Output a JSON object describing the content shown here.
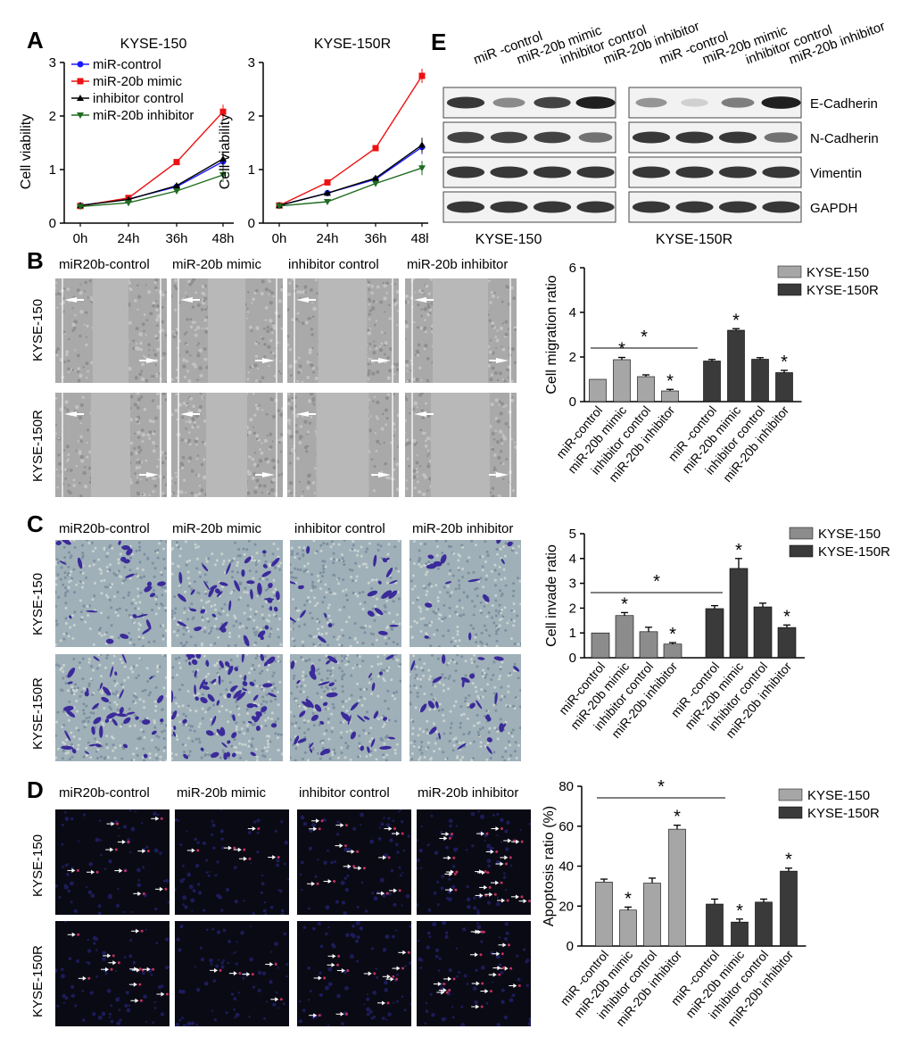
{
  "panels": {
    "A": "A",
    "B": "B",
    "C": "C",
    "D": "D",
    "E": "E"
  },
  "viability": {
    "ylabel": "Cell viability",
    "x": [
      "0h",
      "24h",
      "36h",
      "48h"
    ],
    "yticks": [
      "0",
      "1",
      "2",
      "3"
    ],
    "legend": [
      {
        "name": "miR-control",
        "color": "#1a1aff",
        "marker": "circle"
      },
      {
        "name": "miR-20b mimic",
        "color": "#ee1111",
        "marker": "square"
      },
      {
        "name": "inhibitor control",
        "color": "#000000",
        "marker": "triangle"
      },
      {
        "name": "miR-20b inhibitor",
        "color": "#1f6b1f",
        "marker": "triangle-down"
      }
    ]
  },
  "chart_data": [
    {
      "type": "line",
      "title": "KYSE-150",
      "x": [
        "0h",
        "24h",
        "36h",
        "48h"
      ],
      "ylabel": "Cell viability",
      "ylim": [
        0,
        3
      ],
      "series": [
        {
          "name": "miR-control",
          "values": [
            0.33,
            0.45,
            0.68,
            1.15
          ]
        },
        {
          "name": "miR-20b mimic",
          "values": [
            0.32,
            0.47,
            1.14,
            2.08
          ]
        },
        {
          "name": "inhibitor control",
          "values": [
            0.33,
            0.44,
            0.7,
            1.2
          ]
        },
        {
          "name": "miR-20b inhibitor",
          "values": [
            0.31,
            0.38,
            0.6,
            0.9
          ]
        }
      ]
    },
    {
      "type": "line",
      "title": "KYSE-150R",
      "x": [
        "0h",
        "24h",
        "36h",
        "48h"
      ],
      "ylabel": "Cell viability",
      "ylim": [
        0,
        3
      ],
      "series": [
        {
          "name": "miR-control",
          "values": [
            0.33,
            0.56,
            0.82,
            1.42
          ]
        },
        {
          "name": "miR-20b mimic",
          "values": [
            0.33,
            0.76,
            1.4,
            2.75
          ]
        },
        {
          "name": "inhibitor control",
          "values": [
            0.33,
            0.56,
            0.84,
            1.46
          ]
        },
        {
          "name": "miR-20b inhibitor",
          "values": [
            0.32,
            0.4,
            0.74,
            1.03
          ]
        }
      ]
    },
    {
      "type": "bar",
      "ylabel": "Cell migration ratio",
      "ylim": [
        0,
        6
      ],
      "yticks": [
        0,
        2,
        4,
        6
      ],
      "categories": [
        "miR-control",
        "miR-20b mimic",
        "inhibitor control",
        "miR-20b inhibitor",
        "miR -control",
        "miR-20b mimic",
        "inhibitor control",
        "miR-20b inhibitor"
      ],
      "values": [
        1.0,
        1.88,
        1.12,
        0.48,
        1.82,
        3.2,
        1.9,
        1.3
      ],
      "errors": [
        0,
        0.1,
        0.08,
        0.07,
        0.07,
        0.07,
        0.07,
        0.1
      ],
      "stars": [
        false,
        true,
        false,
        true,
        false,
        true,
        false,
        true
      ],
      "legend": [
        {
          "name": "KYSE-150",
          "color": "#a6a6a6"
        },
        {
          "name": "KYSE-150R",
          "color": "#3a3a3a"
        }
      ]
    },
    {
      "type": "bar",
      "ylabel": "Cell invade ratio",
      "ylim": [
        0,
        5
      ],
      "yticks": [
        0,
        1,
        2,
        3,
        4,
        5
      ],
      "categories": [
        "miR-control",
        "miR-20b mimic",
        "inhibitor control",
        "miR-20b inhibitor",
        "miR -control",
        "miR-20b mimic",
        "inhibitor control",
        "miR-20b inhibitor"
      ],
      "values": [
        1.0,
        1.7,
        1.05,
        0.55,
        1.98,
        3.6,
        2.05,
        1.22
      ],
      "errors": [
        0,
        0.12,
        0.18,
        0.06,
        0.12,
        0.4,
        0.15,
        0.1
      ],
      "stars": [
        false,
        true,
        false,
        true,
        false,
        true,
        false,
        true
      ],
      "legend": [
        {
          "name": "KYSE-150",
          "color": "#8c8c8c"
        },
        {
          "name": "KYSE-150R",
          "color": "#3a3a3a"
        }
      ]
    },
    {
      "type": "bar",
      "ylabel": "Apoptosis ratio (%)",
      "ylim": [
        0,
        80
      ],
      "yticks": [
        0,
        20,
        40,
        60,
        80
      ],
      "categories": [
        "miR -control",
        "miR-20b mimic",
        "inhibitor control",
        "miR-20b inhibitor",
        "miR -control",
        "miR-20b mimic",
        "inhibitor control",
        "miR-20b inhibitor"
      ],
      "values": [
        32,
        18,
        31.5,
        58.5,
        21,
        12,
        22,
        37.5
      ],
      "errors": [
        1.5,
        1.5,
        2.5,
        2.0,
        2.5,
        1.5,
        1.5,
        1.5
      ],
      "stars": [
        false,
        true,
        false,
        true,
        false,
        true,
        false,
        true
      ],
      "legend": [
        {
          "name": "KYSE-150",
          "color": "#a6a6a6"
        },
        {
          "name": "KYSE-150R",
          "color": "#3a3a3a"
        }
      ]
    }
  ],
  "sig": "*",
  "conditions_b": [
    "miR20b-control",
    "miR-20b mimic",
    "inhibitor control",
    "miR-20b inhibitor"
  ],
  "rows": [
    "KYSE-150",
    "KYSE-150R"
  ],
  "western": {
    "lanes": [
      "miR -control",
      "miR-20b mimic",
      "inhibitor control",
      "miR-20b inhibitor"
    ],
    "proteins": [
      "E-Cadherin",
      "N-Cadherin",
      "Vimentin",
      "GAPDH"
    ],
    "cells": [
      "KYSE-150",
      "KYSE-150R"
    ],
    "intensity": {
      "KYSE-150": [
        [
          0.85,
          0.5,
          0.8,
          0.95
        ],
        [
          0.8,
          0.8,
          0.8,
          0.6
        ],
        [
          0.85,
          0.85,
          0.85,
          0.85
        ],
        [
          0.85,
          0.85,
          0.85,
          0.85
        ]
      ],
      "KYSE-150R": [
        [
          0.45,
          0.2,
          0.55,
          0.95
        ],
        [
          0.85,
          0.85,
          0.85,
          0.6
        ],
        [
          0.85,
          0.85,
          0.85,
          0.85
        ],
        [
          0.85,
          0.85,
          0.85,
          0.85
        ]
      ]
    }
  }
}
